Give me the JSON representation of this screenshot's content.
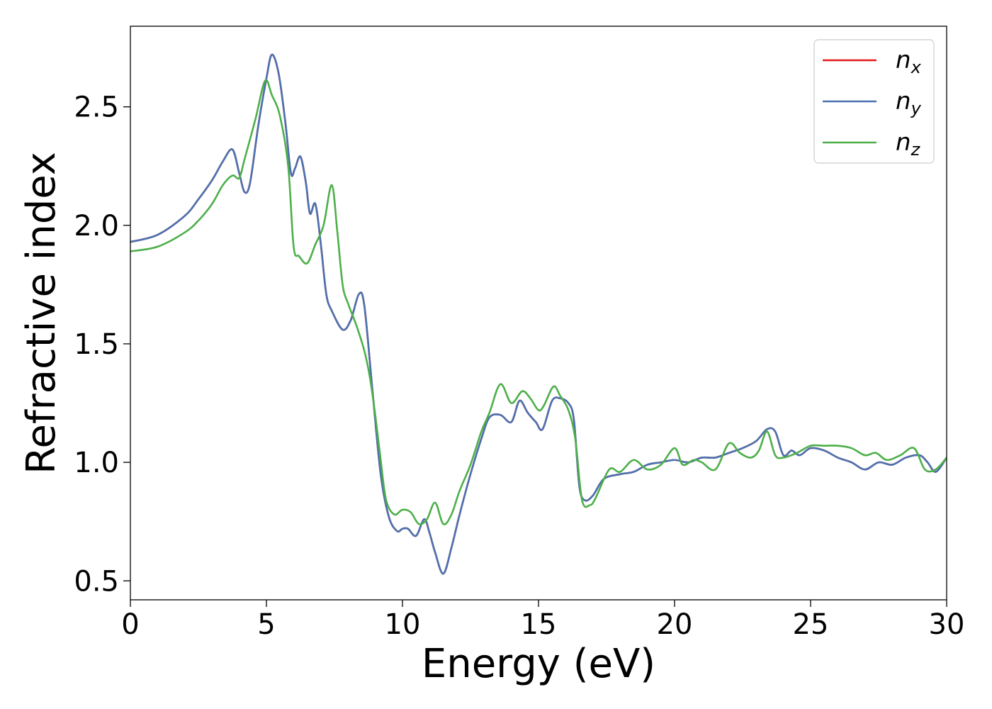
{
  "chart_data": {
    "type": "line",
    "title": "",
    "xlabel": "Energy (eV)",
    "ylabel": "Refractive index",
    "xlim": [
      0,
      30
    ],
    "ylim": [
      0.42,
      2.84
    ],
    "xticks": [
      0,
      5,
      10,
      15,
      20,
      25,
      30
    ],
    "xtick_labels": [
      "0",
      "5",
      "10",
      "15",
      "20",
      "25",
      "30"
    ],
    "yticks": [
      0.5,
      1.0,
      1.5,
      2.0,
      2.5
    ],
    "ytick_labels": [
      "0.5",
      "1.0",
      "1.5",
      "2.0",
      "2.5"
    ],
    "grid": false,
    "legend_position": "top-right",
    "series": [
      {
        "name": "n_x",
        "label_base": "n",
        "label_sub": "x",
        "color": "#e41a1c",
        "x": [
          0,
          1,
          2,
          2.5,
          3,
          3.4,
          3.75,
          4.0,
          4.2,
          4.4,
          4.7,
          5.0,
          5.2,
          5.45,
          5.7,
          5.9,
          6.05,
          6.25,
          6.45,
          6.6,
          6.8,
          7.0,
          7.2,
          7.4,
          7.8,
          8.1,
          8.4,
          8.6,
          8.9,
          9.2,
          9.5,
          9.8,
          10.0,
          10.2,
          10.5,
          10.8,
          11.0,
          11.2,
          11.5,
          11.8,
          12.1,
          12.5,
          12.9,
          13.2,
          13.6,
          14.0,
          14.3,
          14.6,
          14.9,
          15.15,
          15.5,
          15.8,
          16.1,
          16.3,
          16.5,
          16.7,
          17.0,
          17.4,
          18.0,
          18.5,
          19.0,
          19.5,
          20.0,
          20.5,
          21.0,
          21.5,
          22.0,
          22.5,
          23.0,
          23.4,
          23.7,
          24.0,
          24.3,
          24.6,
          25.0,
          25.5,
          26.0,
          26.5,
          27.0,
          27.5,
          28.0,
          28.5,
          29.0,
          29.3,
          29.6,
          30.0
        ],
        "y": [
          1.93,
          1.96,
          2.04,
          2.11,
          2.19,
          2.27,
          2.32,
          2.22,
          2.14,
          2.18,
          2.42,
          2.62,
          2.72,
          2.64,
          2.43,
          2.22,
          2.24,
          2.29,
          2.18,
          2.05,
          2.09,
          1.92,
          1.71,
          1.64,
          1.56,
          1.6,
          1.71,
          1.66,
          1.3,
          0.95,
          0.77,
          0.71,
          0.72,
          0.72,
          0.69,
          0.76,
          0.7,
          0.62,
          0.53,
          0.64,
          0.78,
          0.95,
          1.1,
          1.19,
          1.2,
          1.17,
          1.26,
          1.21,
          1.17,
          1.14,
          1.26,
          1.27,
          1.25,
          1.18,
          0.9,
          0.84,
          0.86,
          0.93,
          0.95,
          0.96,
          0.99,
          1.0,
          1.01,
          1.0,
          1.02,
          1.02,
          1.04,
          1.06,
          1.09,
          1.14,
          1.13,
          1.03,
          1.05,
          1.03,
          1.06,
          1.05,
          1.02,
          1.0,
          0.97,
          1.0,
          0.99,
          1.02,
          1.03,
          1.0,
          0.96,
          1.02
        ]
      },
      {
        "name": "n_y",
        "label_base": "n",
        "label_sub": "y",
        "color": "#4a72b0",
        "x": [
          0,
          1,
          2,
          2.5,
          3,
          3.4,
          3.75,
          4.0,
          4.2,
          4.4,
          4.7,
          5.0,
          5.2,
          5.45,
          5.7,
          5.9,
          6.05,
          6.25,
          6.45,
          6.6,
          6.8,
          7.0,
          7.2,
          7.4,
          7.8,
          8.1,
          8.4,
          8.6,
          8.9,
          9.2,
          9.5,
          9.8,
          10.0,
          10.2,
          10.5,
          10.8,
          11.0,
          11.2,
          11.5,
          11.8,
          12.1,
          12.5,
          12.9,
          13.2,
          13.6,
          14.0,
          14.3,
          14.6,
          14.9,
          15.15,
          15.5,
          15.8,
          16.1,
          16.3,
          16.5,
          16.7,
          17.0,
          17.4,
          18.0,
          18.5,
          19.0,
          19.5,
          20.0,
          20.5,
          21.0,
          21.5,
          22.0,
          22.5,
          23.0,
          23.4,
          23.7,
          24.0,
          24.3,
          24.6,
          25.0,
          25.5,
          26.0,
          26.5,
          27.0,
          27.5,
          28.0,
          28.5,
          29.0,
          29.3,
          29.6,
          30.0
        ],
        "y": [
          1.93,
          1.96,
          2.04,
          2.11,
          2.19,
          2.27,
          2.32,
          2.22,
          2.14,
          2.18,
          2.42,
          2.62,
          2.72,
          2.64,
          2.43,
          2.22,
          2.24,
          2.29,
          2.18,
          2.05,
          2.09,
          1.92,
          1.71,
          1.64,
          1.56,
          1.6,
          1.71,
          1.66,
          1.3,
          0.95,
          0.77,
          0.71,
          0.72,
          0.72,
          0.69,
          0.76,
          0.7,
          0.62,
          0.53,
          0.64,
          0.78,
          0.95,
          1.1,
          1.19,
          1.2,
          1.17,
          1.26,
          1.21,
          1.17,
          1.14,
          1.26,
          1.27,
          1.25,
          1.18,
          0.9,
          0.84,
          0.86,
          0.93,
          0.95,
          0.96,
          0.99,
          1.0,
          1.01,
          1.0,
          1.02,
          1.02,
          1.04,
          1.06,
          1.09,
          1.14,
          1.13,
          1.03,
          1.05,
          1.03,
          1.06,
          1.05,
          1.02,
          1.0,
          0.97,
          1.0,
          0.99,
          1.02,
          1.03,
          1.0,
          0.96,
          1.02
        ]
      },
      {
        "name": "n_z",
        "label_base": "n",
        "label_sub": "z",
        "color": "#4daf4a",
        "x": [
          0,
          1,
          2,
          2.5,
          3,
          3.4,
          3.75,
          4.0,
          4.2,
          4.6,
          4.95,
          5.2,
          5.5,
          5.8,
          6.0,
          6.2,
          6.5,
          6.8,
          7.1,
          7.4,
          7.6,
          7.8,
          8.0,
          8.3,
          8.6,
          8.8,
          9.0,
          9.2,
          9.4,
          9.7,
          10.0,
          10.3,
          10.6,
          10.9,
          11.2,
          11.5,
          11.8,
          12.1,
          12.5,
          12.9,
          13.2,
          13.6,
          14.0,
          14.4,
          14.7,
          15.0,
          15.2,
          15.55,
          15.8,
          16.1,
          16.35,
          16.6,
          16.9,
          17.1,
          17.6,
          18.0,
          18.5,
          19.0,
          19.5,
          20.0,
          20.3,
          20.7,
          21.0,
          21.5,
          22.0,
          22.4,
          22.8,
          23.1,
          23.4,
          23.7,
          24.0,
          24.5,
          25.0,
          25.5,
          26.0,
          26.5,
          27.0,
          27.4,
          27.8,
          28.3,
          28.8,
          29.2,
          29.6,
          30.0
        ],
        "y": [
          1.89,
          1.91,
          1.97,
          2.02,
          2.09,
          2.17,
          2.21,
          2.2,
          2.28,
          2.45,
          2.61,
          2.55,
          2.46,
          2.25,
          1.91,
          1.87,
          1.84,
          1.92,
          2.0,
          2.17,
          1.98,
          1.75,
          1.67,
          1.58,
          1.47,
          1.36,
          1.2,
          1.01,
          0.84,
          0.78,
          0.8,
          0.79,
          0.74,
          0.76,
          0.83,
          0.74,
          0.78,
          0.88,
          0.99,
          1.13,
          1.21,
          1.33,
          1.25,
          1.3,
          1.27,
          1.22,
          1.24,
          1.32,
          1.28,
          1.22,
          1.1,
          0.84,
          0.82,
          0.85,
          0.97,
          0.96,
          1.01,
          0.97,
          0.99,
          1.06,
          0.99,
          1.01,
          1.0,
          0.97,
          1.08,
          1.04,
          1.02,
          1.05,
          1.13,
          1.03,
          1.02,
          1.04,
          1.07,
          1.07,
          1.07,
          1.06,
          1.03,
          1.04,
          1.01,
          1.03,
          1.06,
          0.97,
          0.97,
          1.02
        ]
      }
    ]
  }
}
